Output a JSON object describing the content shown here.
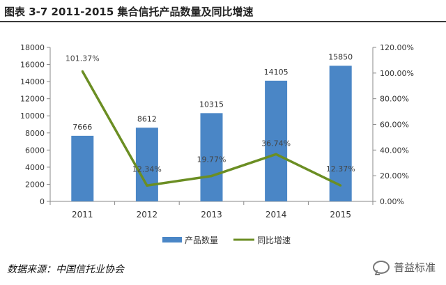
{
  "figure": {
    "title": "图表 3-7 2011-2015 集合信托产品数量及同比增速",
    "source": "数据来源：中国信托业协会",
    "brand": "普益标准",
    "brand_icon": "chat-bubble-icon"
  },
  "chart_data": {
    "type": "bar",
    "categories": [
      "2011",
      "2012",
      "2013",
      "2014",
      "2015"
    ],
    "series": [
      {
        "name": "产品数量",
        "type": "bar",
        "axis": "left",
        "values": [
          7666,
          8612,
          10315,
          14105,
          15850
        ],
        "labels": [
          "7666",
          "8612",
          "10315",
          "14105",
          "15850"
        ],
        "color": "#4a86c6"
      },
      {
        "name": "同比增速",
        "type": "line",
        "axis": "right",
        "values": [
          101.37,
          12.34,
          19.77,
          36.74,
          12.37
        ],
        "labels": [
          "101.37%",
          "12.34%",
          "19.77%",
          "36.74%",
          "12.37%"
        ],
        "color": "#6b8e23"
      }
    ],
    "y_left": {
      "min": 0,
      "max": 18000,
      "ticks": [
        "0",
        "2000",
        "4000",
        "6000",
        "8000",
        "10000",
        "12000",
        "14000",
        "16000",
        "18000"
      ]
    },
    "y_right": {
      "min": 0,
      "max": 120,
      "ticks": [
        "0.00%",
        "20.00%",
        "40.00%",
        "60.00%",
        "80.00%",
        "100.00%",
        "120.00%"
      ]
    },
    "grid": false,
    "legend": "bottom-center"
  }
}
